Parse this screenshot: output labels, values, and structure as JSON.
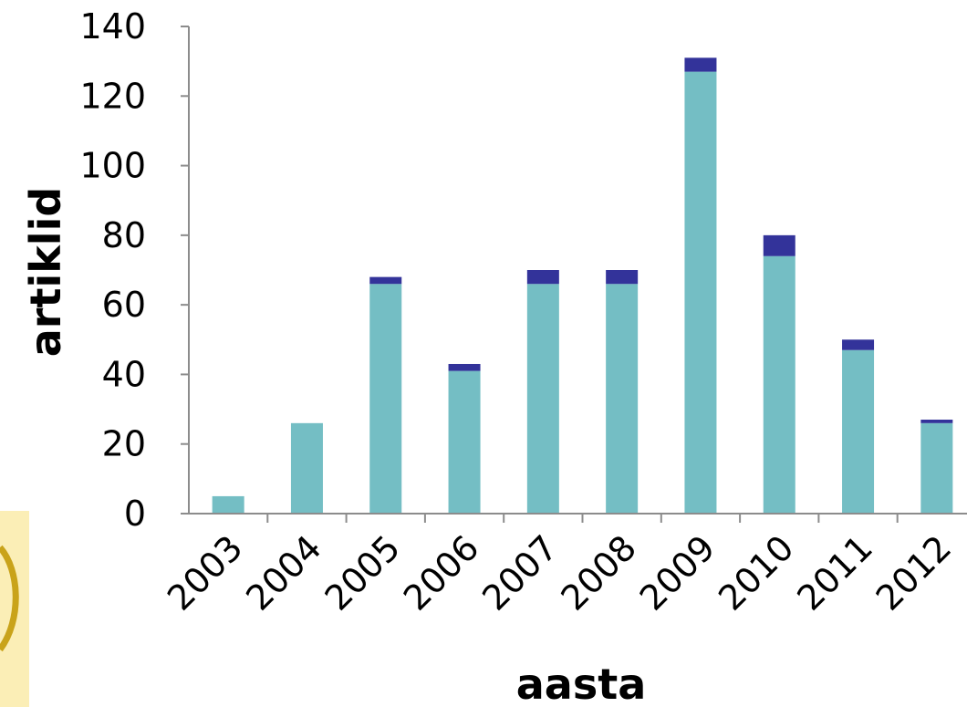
{
  "chart_data": {
    "type": "bar",
    "stacked": true,
    "title": "",
    "xlabel": "aasta",
    "ylabel": "artiklid",
    "categories": [
      "2003",
      "2004",
      "2005",
      "2006",
      "2007",
      "2008",
      "2009",
      "2010",
      "2011",
      "2012"
    ],
    "series": [
      {
        "values": [
          5,
          26,
          66,
          41,
          66,
          66,
          127,
          74,
          47,
          26
        ]
      },
      {
        "values": [
          0,
          0,
          2,
          2,
          4,
          4,
          4,
          6,
          3,
          1
        ]
      }
    ],
    "ylim": [
      0,
      140
    ],
    "yticks": [
      "0",
      "20",
      "40",
      "60",
      "80",
      "100",
      "120",
      "140"
    ],
    "grid": false,
    "legend": "none",
    "colors": {
      "series_0": "#74bec4",
      "series_1": "#33339a",
      "axis": "#8c8c8c"
    }
  }
}
